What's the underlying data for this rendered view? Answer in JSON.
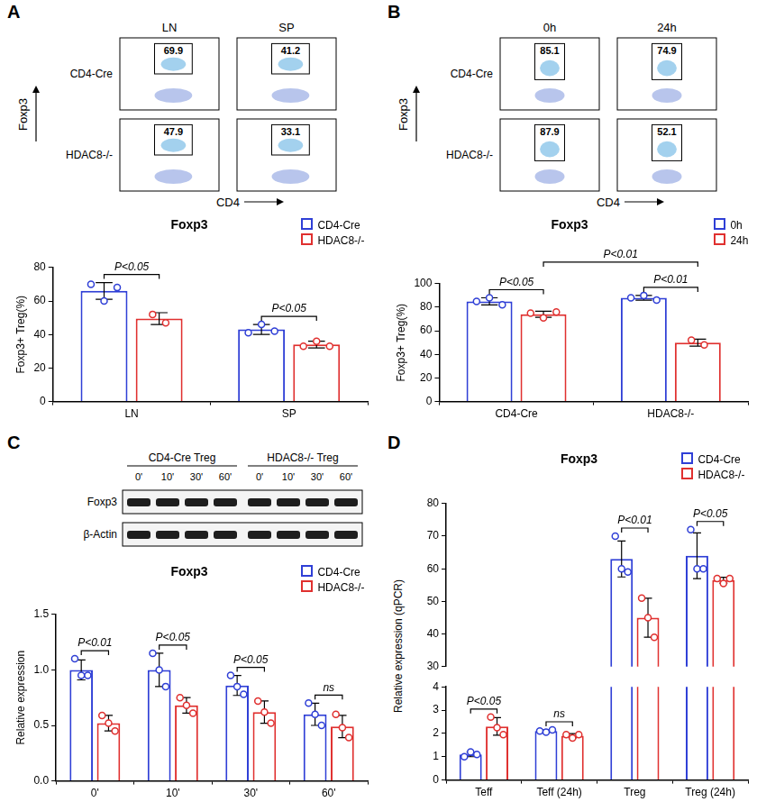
{
  "chart_data": [
    {
      "panel": "A",
      "type": "bar",
      "title": "Foxp3",
      "y_label": "Foxp3+ Treg(%)",
      "categories": [
        "LN",
        "SP"
      ],
      "series": [
        {
          "name": "CD4-Cre",
          "color": "#2f3fd6",
          "values": [
            66,
            43
          ],
          "errors": [
            5,
            3
          ],
          "points": [
            [
              70,
              60,
              68
            ],
            [
              41,
              46,
              42
            ]
          ]
        },
        {
          "name": "HDAC8-/-",
          "color": "#e0302f",
          "values": [
            49.5,
            34
          ],
          "errors": [
            3.5,
            2
          ],
          "points": [
            [
              52,
              47
            ],
            [
              33,
              36,
              33
            ]
          ]
        }
      ],
      "ylim": [
        0,
        80
      ],
      "yticks": [
        0,
        20,
        40,
        60,
        80
      ],
      "grid": false,
      "legend": "upper right",
      "annotations": [
        {
          "text": "P<0.05",
          "between": [
            [
              0,
              0
            ],
            [
              0,
              1
            ]
          ]
        },
        {
          "text": "P<0.05",
          "between": [
            [
              1,
              0
            ],
            [
              1,
              1
            ]
          ]
        }
      ]
    },
    {
      "panel": "B",
      "type": "bar",
      "title": "Foxp3",
      "y_label": "Foxp3+ Treg(%)",
      "categories": [
        "CD4-Cre",
        "HDAC8-/-"
      ],
      "series": [
        {
          "name": "0h",
          "color": "#2f3fd6",
          "values": [
            85,
            88
          ],
          "errors": [
            3,
            2
          ],
          "points": [
            [
              85,
              88,
              82
            ],
            [
              88,
              90,
              86
            ]
          ]
        },
        {
          "name": "24h",
          "color": "#e0302f",
          "values": [
            74,
            50
          ],
          "errors": [
            2.6,
            3
          ],
          "points": [
            [
              75,
              71,
              76
            ],
            [
              52,
              48
            ]
          ]
        }
      ],
      "ylim": [
        0,
        100
      ],
      "yticks": [
        0,
        20,
        40,
        60,
        80,
        100
      ],
      "grid": false,
      "legend": "upper right",
      "annotations": [
        {
          "text": "P<0.05",
          "between": [
            [
              0,
              0
            ],
            [
              0,
              1
            ]
          ]
        },
        {
          "text": "P<0.01",
          "between": [
            [
              1,
              0
            ],
            [
              1,
              1
            ]
          ]
        },
        {
          "text": "P<0.01",
          "between": [
            [
              0,
              1
            ],
            [
              1,
              1
            ]
          ]
        }
      ]
    },
    {
      "panel": "C",
      "type": "bar",
      "title": "Foxp3",
      "y_label": "Relative expression",
      "categories": [
        "0'",
        "10'",
        "30'",
        "60'"
      ],
      "series": [
        {
          "name": "CD4-Cre",
          "color": "#2f3fd6",
          "values": [
            1.0,
            1.0,
            0.86,
            0.6
          ],
          "errors": [
            0.09,
            0.15,
            0.09,
            0.1
          ],
          "points": [
            [
              1.1,
              0.95,
              0.95
            ],
            [
              1.15,
              1.0,
              0.85
            ],
            [
              0.95,
              0.85,
              0.78
            ],
            [
              0.7,
              0.6,
              0.5
            ]
          ]
        },
        {
          "name": "HDAC8-/-",
          "color": "#e0302f",
          "values": [
            0.52,
            0.68,
            0.62,
            0.49
          ],
          "errors": [
            0.07,
            0.07,
            0.1,
            0.1
          ],
          "points": [
            [
              0.59,
              0.52,
              0.45
            ],
            [
              0.75,
              0.68,
              0.61
            ],
            [
              0.72,
              0.62,
              0.52
            ],
            [
              0.6,
              0.48,
              0.39
            ]
          ]
        }
      ],
      "ylim": [
        0,
        1.5
      ],
      "yticks": [
        {
          "value": 0,
          "label": "0.0"
        },
        0.5,
        {
          "value": 1,
          "label": "1.0"
        },
        1.5
      ],
      "grid": false,
      "legend": "upper right",
      "annotations": [
        {
          "text": "P<0.01",
          "between": [
            [
              0,
              0
            ],
            [
              0,
              1
            ]
          ]
        },
        {
          "text": "P<0.05",
          "between": [
            [
              1,
              0
            ],
            [
              1,
              1
            ]
          ]
        },
        {
          "text": "P<0.05",
          "between": [
            [
              2,
              0
            ],
            [
              2,
              1
            ]
          ]
        },
        {
          "text": "ns",
          "between": [
            [
              3,
              0
            ],
            [
              3,
              1
            ]
          ]
        }
      ]
    },
    {
      "panel": "D",
      "type": "bar",
      "title": "Foxp3",
      "y_label": "Relative expression (qPCR)",
      "categories": [
        "Teff",
        "Teff (24h)",
        "Treg",
        "Treg (24h)"
      ],
      "series": [
        {
          "name": "CD4-Cre",
          "color": "#2f3fd6",
          "values": [
            1.1,
            2.1,
            63,
            64
          ],
          "errors": [
            0.1,
            0.05,
            5.5,
            7
          ],
          "points": [
            [
              1.0,
              1.2,
              1.1
            ],
            [
              2.1,
              2.05,
              2.15
            ],
            [
              70,
              60,
              59
            ],
            [
              72,
              60,
              60
            ]
          ]
        },
        {
          "name": "HDAC8-/-",
          "color": "#e0302f",
          "values": [
            2.3,
            1.9,
            45,
            56.5
          ],
          "errors": [
            0.38,
            0.09,
            6,
            0.9
          ],
          "points": [
            [
              2.7,
              2.25,
              1.95
            ],
            [
              1.95,
              1.8,
              1.95
            ],
            [
              51,
              45,
              39
            ],
            [
              57,
              55.5,
              57
            ]
          ]
        }
      ],
      "y_segments": [
        {
          "ylim": [
            0,
            4
          ],
          "yticks": [
            0,
            1,
            2,
            3,
            4
          ]
        },
        {
          "ylim": [
            30,
            80
          ],
          "yticks": [
            30,
            40,
            50,
            60,
            70,
            80
          ]
        }
      ],
      "grid": false,
      "legend": "upper right",
      "annotations": [
        {
          "text": "P<0.05",
          "between": [
            [
              0,
              0
            ],
            [
              0,
              1
            ]
          ]
        },
        {
          "text": "ns",
          "between": [
            [
              1,
              0
            ],
            [
              1,
              1
            ]
          ]
        },
        {
          "text": "P<0.01",
          "between": [
            [
              2,
              0
            ],
            [
              2,
              1
            ]
          ]
        },
        {
          "text": "P<0.05",
          "between": [
            [
              3,
              0
            ],
            [
              3,
              1
            ]
          ]
        }
      ]
    }
  ],
  "flow_plots": [
    {
      "columns": [
        "LN",
        "SP"
      ],
      "rows": [
        "CD4-Cre",
        "HDAC8-/-"
      ],
      "x_label": "CD4",
      "y_label": "Foxp3",
      "gates": [
        [
          69.9,
          41.2
        ],
        [
          47.9,
          33.1
        ]
      ]
    },
    {
      "columns": [
        "0h",
        "24h"
      ],
      "rows": [
        "CD4-Cre",
        "HDAC8-/-"
      ],
      "x_label": "CD4",
      "y_label": "Foxp3",
      "gates": [
        [
          85.1,
          74.9
        ],
        [
          87.9,
          52.1
        ]
      ]
    }
  ],
  "blot": {
    "groups": [
      "CD4-Cre Treg",
      "HDAC8-/- Treg"
    ],
    "lanes": [
      "0'",
      "10'",
      "30'",
      "60'"
    ],
    "rows": [
      "Foxp3",
      "β-Actin"
    ]
  }
}
